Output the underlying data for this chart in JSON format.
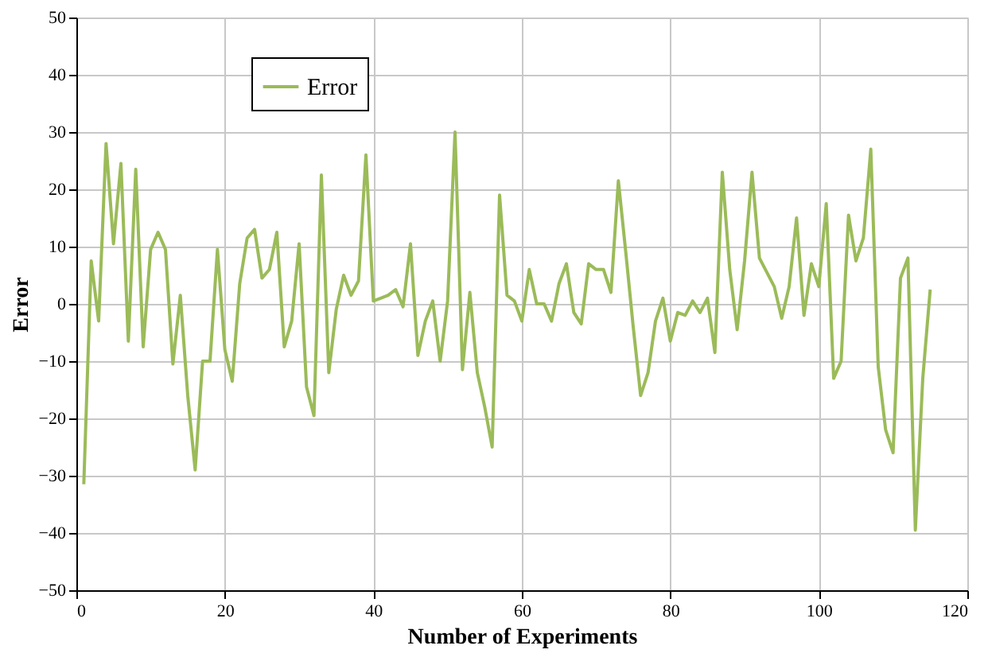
{
  "chart_data": {
    "type": "line",
    "xlabel": "Number of Experiments",
    "ylabel": "Error",
    "x": [
      1,
      2,
      3,
      4,
      5,
      6,
      7,
      8,
      9,
      10,
      11,
      12,
      13,
      14,
      15,
      16,
      17,
      18,
      19,
      20,
      21,
      22,
      23,
      24,
      25,
      26,
      27,
      28,
      29,
      30,
      31,
      32,
      33,
      34,
      35,
      36,
      37,
      38,
      39,
      40,
      41,
      42,
      43,
      44,
      45,
      46,
      47,
      48,
      49,
      50,
      51,
      52,
      53,
      54,
      55,
      56,
      57,
      58,
      59,
      60,
      61,
      62,
      63,
      64,
      65,
      66,
      67,
      68,
      69,
      70,
      71,
      72,
      73,
      74,
      75,
      76,
      77,
      78,
      79,
      80,
      81,
      82,
      83,
      84,
      85,
      86,
      87,
      88,
      89,
      90,
      91,
      92,
      93,
      94,
      95,
      96,
      97,
      98,
      99,
      100,
      101,
      102,
      103,
      104,
      105,
      106,
      107,
      108,
      109,
      110,
      111,
      112,
      113,
      114,
      115
    ],
    "series": [
      {
        "name": "Error",
        "color": "#9bbb59",
        "values": [
          -31.5,
          7.5,
          -3,
          28,
          10.5,
          24.5,
          -6.5,
          23.5,
          -7.5,
          9.5,
          12.5,
          9.5,
          -10.5,
          1.5,
          -16,
          -29,
          -10,
          -10,
          9.5,
          -8,
          -13.5,
          3.5,
          11.5,
          13,
          4.5,
          6,
          12.5,
          -7.5,
          -3,
          10.5,
          -14.5,
          -19.5,
          22.5,
          -12,
          -1,
          5,
          1.5,
          4,
          26,
          0.5,
          1,
          1.5,
          2.5,
          -0.5,
          10.5,
          -9,
          -3,
          0.5,
          -10,
          0.5,
          30,
          -11.5,
          2,
          -12,
          -18,
          -25,
          19,
          1.5,
          0.5,
          -3,
          6,
          0,
          0,
          -3,
          3.5,
          7,
          -1.5,
          -3.5,
          7,
          6,
          6,
          2,
          21.5,
          9,
          -4,
          -16,
          -12,
          -3,
          1,
          -6.5,
          -1.5,
          -2,
          0.5,
          -1.5,
          1,
          -8.5,
          23,
          6,
          -4.5,
          7.5,
          23,
          8,
          5.5,
          3,
          -2.5,
          3,
          15,
          -2,
          7,
          3,
          17.5,
          -13,
          -10,
          15.5,
          7.5,
          11.5,
          27,
          -11,
          -22,
          -26,
          4.5,
          8,
          -39.5,
          -13,
          2.5
        ]
      }
    ],
    "xlim": [
      0,
      120
    ],
    "xticks": [
      0,
      20,
      40,
      60,
      80,
      100,
      120
    ],
    "ylim": [
      -50,
      50
    ],
    "yticks": [
      -50,
      -40,
      -30,
      -20,
      -10,
      0,
      10,
      20,
      30,
      40,
      50
    ],
    "grid": true,
    "legend": "top left",
    "marker": "none",
    "line_style": "solid"
  }
}
